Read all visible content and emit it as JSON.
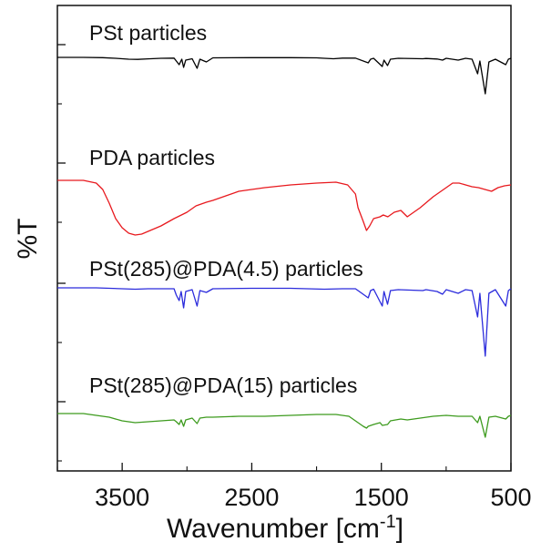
{
  "chart_data": {
    "type": "line",
    "title": "",
    "xlabel": "Wavenumber [cm",
    "xlabel_sup": "-1",
    "xlabel_close": "]",
    "ylabel": "%T",
    "xlim": [
      4000,
      500
    ],
    "x_reversed": true,
    "x_ticks": [
      3500,
      2500,
      1500,
      500
    ],
    "x_tick_labels": [
      "3500",
      "2500",
      "1500",
      "500"
    ],
    "y_tick_labels_shown": false,
    "grid": false,
    "series": [
      {
        "name": "PSt particles",
        "color": "#000000",
        "baseline": 0.0,
        "points": [
          [
            4000,
            0.0
          ],
          [
            3800,
            0.0
          ],
          [
            3650,
            -0.3
          ],
          [
            3550,
            -1.0
          ],
          [
            3450,
            -2.0
          ],
          [
            3380,
            -2.2
          ],
          [
            3300,
            -1.6
          ],
          [
            3200,
            -1.0
          ],
          [
            3100,
            -0.8
          ],
          [
            3082,
            -4.0
          ],
          [
            3060,
            -8.0
          ],
          [
            3040,
            -2.0
          ],
          [
            3026,
            -11.0
          ],
          [
            3010,
            -3.0
          ],
          [
            2960,
            -1.5
          ],
          [
            2922,
            -12.0
          ],
          [
            2900,
            -2.0
          ],
          [
            2850,
            -5.0
          ],
          [
            2800,
            -0.5
          ],
          [
            2500,
            -0.3
          ],
          [
            2200,
            -0.3
          ],
          [
            2000,
            -0.5
          ],
          [
            1940,
            -1.0
          ],
          [
            1870,
            -1.5
          ],
          [
            1800,
            -0.8
          ],
          [
            1700,
            -0.8
          ],
          [
            1601,
            -6.0
          ],
          [
            1583,
            -2.0
          ],
          [
            1560,
            -1.0
          ],
          [
            1493,
            -10.0
          ],
          [
            1480,
            -3.0
          ],
          [
            1452,
            -9.0
          ],
          [
            1430,
            -2.0
          ],
          [
            1370,
            -1.0
          ],
          [
            1180,
            -1.5
          ],
          [
            1155,
            -1.2
          ],
          [
            1070,
            -1.8
          ],
          [
            1028,
            -3.0
          ],
          [
            1000,
            -1.0
          ],
          [
            907,
            -3.0
          ],
          [
            850,
            -1.0
          ],
          [
            800,
            -2.0
          ],
          [
            757,
            -18.0
          ],
          [
            740,
            -4.0
          ],
          [
            698,
            -40.0
          ],
          [
            670,
            -5.0
          ],
          [
            620,
            -2.0
          ],
          [
            540,
            -8.0
          ],
          [
            520,
            -2.0
          ],
          [
            500,
            -1.0
          ]
        ]
      },
      {
        "name": "PDA particles",
        "color": "#e8191e",
        "baseline": 0.0,
        "points": [
          [
            4000,
            0.0
          ],
          [
            3800,
            0.0
          ],
          [
            3700,
            -3.0
          ],
          [
            3650,
            -10.0
          ],
          [
            3600,
            -25.0
          ],
          [
            3550,
            -42.0
          ],
          [
            3500,
            -52.0
          ],
          [
            3450,
            -58.0
          ],
          [
            3400,
            -60.0
          ],
          [
            3350,
            -59.0
          ],
          [
            3300,
            -56.0
          ],
          [
            3200,
            -50.0
          ],
          [
            3100,
            -42.0
          ],
          [
            3000,
            -35.0
          ],
          [
            2930,
            -28.0
          ],
          [
            2850,
            -24.0
          ],
          [
            2800,
            -22.0
          ],
          [
            2700,
            -17.0
          ],
          [
            2600,
            -12.0
          ],
          [
            2500,
            -10.0
          ],
          [
            2400,
            -8.0
          ],
          [
            2200,
            -5.0
          ],
          [
            2000,
            -3.0
          ],
          [
            1850,
            -2.0
          ],
          [
            1760,
            -5.0
          ],
          [
            1700,
            -15.0
          ],
          [
            1680,
            -30.0
          ],
          [
            1640,
            -45.0
          ],
          [
            1615,
            -55.0
          ],
          [
            1590,
            -50.0
          ],
          [
            1560,
            -42.0
          ],
          [
            1510,
            -40.0
          ],
          [
            1485,
            -38.0
          ],
          [
            1450,
            -40.0
          ],
          [
            1400,
            -35.0
          ],
          [
            1350,
            -33.0
          ],
          [
            1300,
            -40.0
          ],
          [
            1280,
            -38.0
          ],
          [
            1200,
            -30.0
          ],
          [
            1100,
            -18.0
          ],
          [
            1000,
            -8.0
          ],
          [
            950,
            -3.0
          ],
          [
            900,
            -3.0
          ],
          [
            850,
            -5.0
          ],
          [
            800,
            -7.0
          ],
          [
            750,
            -8.0
          ],
          [
            700,
            -10.0
          ],
          [
            650,
            -12.0
          ],
          [
            600,
            -8.0
          ],
          [
            550,
            -6.0
          ],
          [
            500,
            -5.0
          ]
        ]
      },
      {
        "name": "PSt(285)@PDA(4.5) particles",
        "color": "#2b2bdc",
        "baseline": 0.0,
        "points": [
          [
            4000,
            0.0
          ],
          [
            3700,
            0.0
          ],
          [
            3500,
            -1.0
          ],
          [
            3400,
            -1.5
          ],
          [
            3300,
            -1.0
          ],
          [
            3100,
            -1.0
          ],
          [
            3082,
            -8.0
          ],
          [
            3060,
            -14.0
          ],
          [
            3045,
            -4.0
          ],
          [
            3026,
            -22.0
          ],
          [
            3010,
            -4.0
          ],
          [
            2960,
            -2.0
          ],
          [
            2922,
            -20.0
          ],
          [
            2900,
            -3.0
          ],
          [
            2850,
            -5.0
          ],
          [
            2800,
            -1.0
          ],
          [
            2500,
            -0.5
          ],
          [
            2200,
            -0.5
          ],
          [
            1940,
            -1.5
          ],
          [
            1800,
            -1.0
          ],
          [
            1700,
            -1.0
          ],
          [
            1601,
            -11.0
          ],
          [
            1583,
            -3.0
          ],
          [
            1560,
            -1.5
          ],
          [
            1493,
            -20.0
          ],
          [
            1480,
            -4.0
          ],
          [
            1452,
            -18.0
          ],
          [
            1430,
            -3.0
          ],
          [
            1370,
            -2.0
          ],
          [
            1180,
            -3.0
          ],
          [
            1155,
            -2.0
          ],
          [
            1070,
            -4.0
          ],
          [
            1028,
            -7.0
          ],
          [
            1000,
            -2.0
          ],
          [
            907,
            -6.0
          ],
          [
            850,
            -2.0
          ],
          [
            800,
            -3.0
          ],
          [
            757,
            -32.0
          ],
          [
            740,
            -6.0
          ],
          [
            698,
            -75.0
          ],
          [
            670,
            -6.0
          ],
          [
            620,
            -2.0
          ],
          [
            540,
            -20.0
          ],
          [
            520,
            -3.0
          ],
          [
            500,
            -1.0
          ]
        ]
      },
      {
        "name": "PSt(285)@PDA(15) particles",
        "color": "#3d9b1e",
        "baseline": 0.0,
        "points": [
          [
            4000,
            0.0
          ],
          [
            3800,
            0.0
          ],
          [
            3600,
            -4.0
          ],
          [
            3500,
            -8.0
          ],
          [
            3400,
            -10.0
          ],
          [
            3300,
            -9.0
          ],
          [
            3200,
            -8.0
          ],
          [
            3100,
            -7.0
          ],
          [
            3082,
            -9.0
          ],
          [
            3060,
            -12.0
          ],
          [
            3045,
            -7.0
          ],
          [
            3026,
            -14.0
          ],
          [
            3010,
            -7.0
          ],
          [
            2960,
            -5.0
          ],
          [
            2922,
            -11.0
          ],
          [
            2900,
            -5.0
          ],
          [
            2850,
            -4.0
          ],
          [
            2800,
            -4.0
          ],
          [
            2600,
            -3.0
          ],
          [
            2400,
            -3.0
          ],
          [
            2200,
            -2.0
          ],
          [
            2000,
            -1.0
          ],
          [
            1850,
            -1.0
          ],
          [
            1750,
            -3.0
          ],
          [
            1680,
            -10.0
          ],
          [
            1640,
            -14.0
          ],
          [
            1615,
            -16.0
          ],
          [
            1601,
            -14.0
          ],
          [
            1560,
            -12.0
          ],
          [
            1510,
            -10.0
          ],
          [
            1493,
            -13.0
          ],
          [
            1452,
            -12.0
          ],
          [
            1430,
            -8.0
          ],
          [
            1350,
            -6.0
          ],
          [
            1300,
            -7.0
          ],
          [
            1200,
            -5.0
          ],
          [
            1100,
            -3.0
          ],
          [
            1000,
            -2.0
          ],
          [
            907,
            -3.0
          ],
          [
            800,
            -3.0
          ],
          [
            757,
            -10.0
          ],
          [
            740,
            -3.0
          ],
          [
            698,
            -26.0
          ],
          [
            670,
            -4.0
          ],
          [
            620,
            -3.0
          ],
          [
            540,
            -6.0
          ],
          [
            520,
            -3.0
          ],
          [
            500,
            -2.0
          ]
        ]
      }
    ]
  }
}
